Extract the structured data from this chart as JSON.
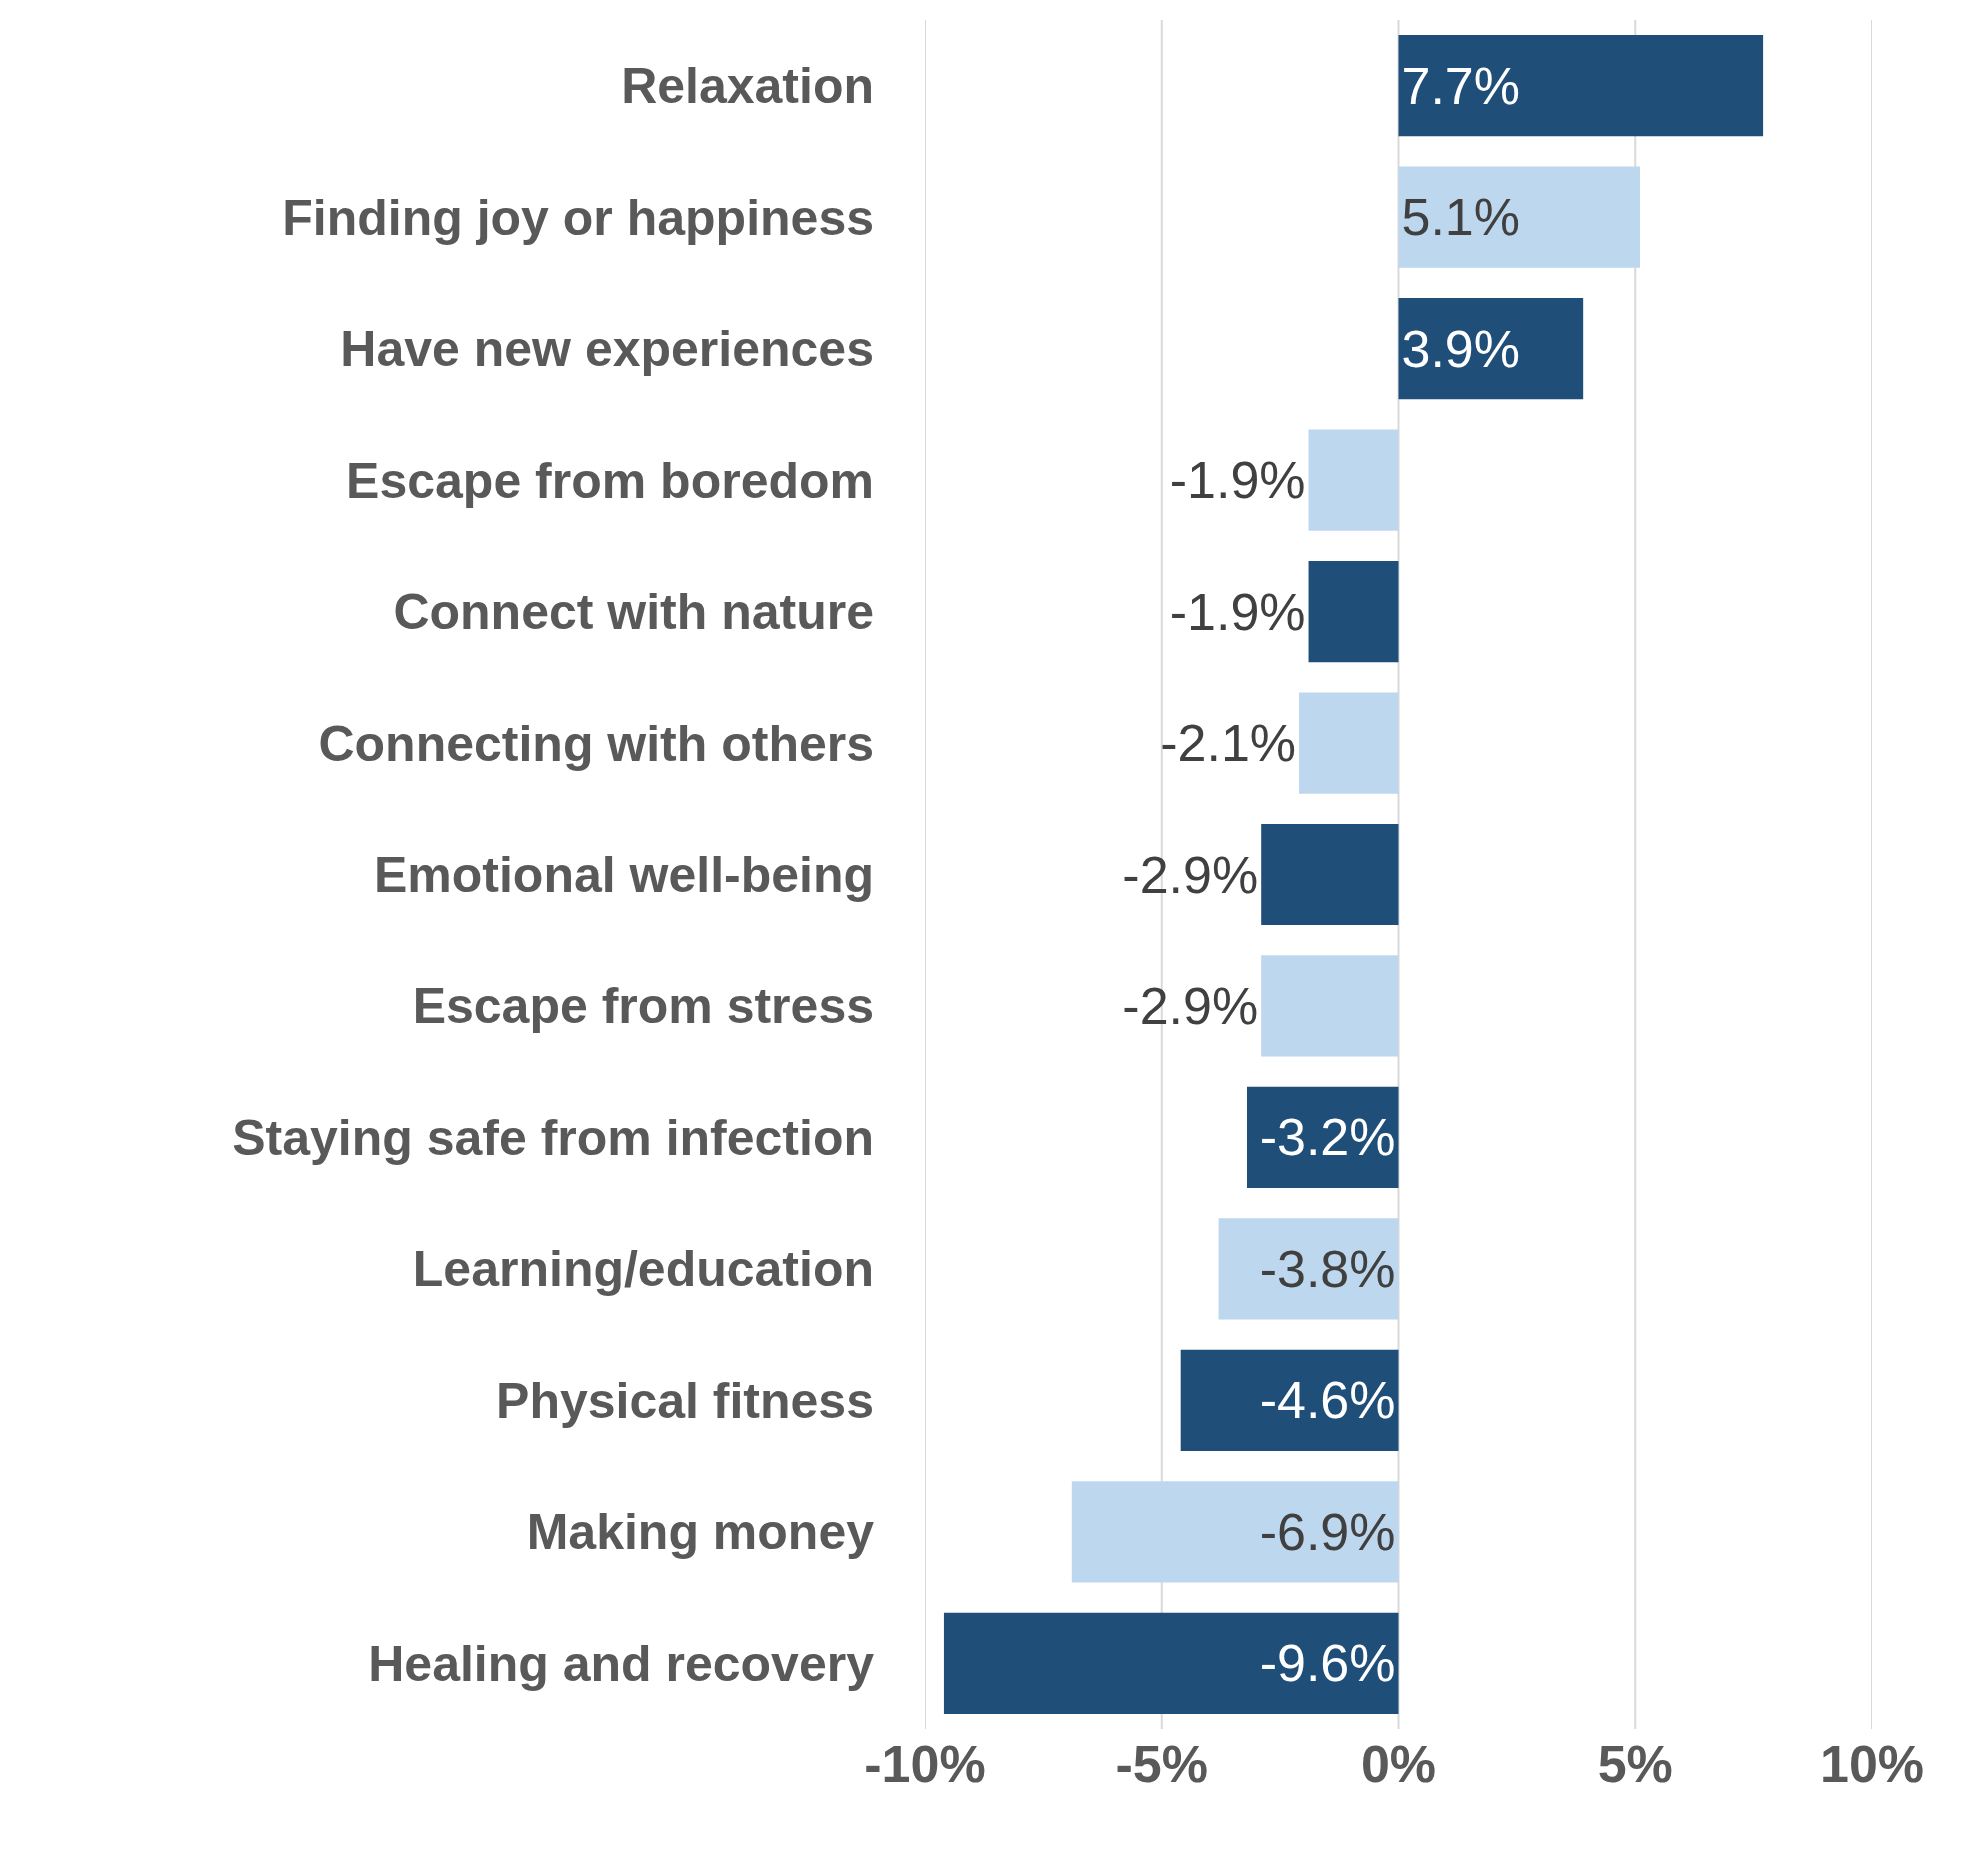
{
  "chart_data": {
    "type": "bar",
    "orientation": "horizontal",
    "categories": [
      "Relaxation",
      "Finding joy or happiness",
      "Have new experiences",
      "Escape from boredom",
      "Connect with nature",
      "Connecting with others",
      "Emotional well-being",
      "Escape from stress",
      "Staying safe from infection",
      "Learning/education",
      "Physical fitness",
      "Making money",
      "Healing and recovery"
    ],
    "values": [
      7.7,
      5.1,
      3.9,
      -1.9,
      -1.9,
      -2.1,
      -2.9,
      -2.9,
      -3.2,
      -3.8,
      -4.6,
      -6.9,
      -9.6
    ],
    "colors": [
      "#1f4e79",
      "#bdd7ee",
      "#1f4e79",
      "#bdd7ee",
      "#1f4e79",
      "#bdd7ee",
      "#1f4e79",
      "#bdd7ee",
      "#1f4e79",
      "#bdd7ee",
      "#1f4e79",
      "#bdd7ee",
      "#1f4e79"
    ],
    "value_labels": [
      "7.7%",
      "5.1%",
      "3.9%",
      "-1.9%",
      "-1.9%",
      "-2.1%",
      "-2.9%",
      "-2.9%",
      "-3.2%",
      "-3.8%",
      "-4.6%",
      "-6.9%",
      "-9.6%"
    ],
    "xlim": [
      -10,
      10
    ],
    "xticks": [
      {
        "value": -10,
        "label": "-10%"
      },
      {
        "value": -5,
        "label": "-5%"
      },
      {
        "value": 0,
        "label": "0%"
      },
      {
        "value": 5,
        "label": "5%"
      },
      {
        "value": 10,
        "label": "10%"
      }
    ],
    "grid": "x"
  }
}
